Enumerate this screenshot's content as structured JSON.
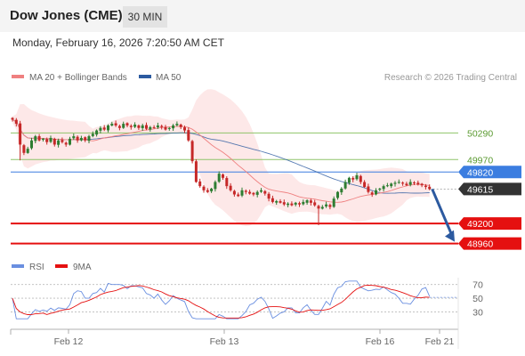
{
  "header": {
    "title": "Dow Jones (CME)",
    "timeframe": "30 MIN"
  },
  "timestamp": "Monday, February 16, 2026 7:20:50 AM CET",
  "legend": {
    "ma20_label": "MA 20 + Bollinger Bands",
    "ma50_label": "MA 50",
    "credit": "Research © 2026 Trading Central",
    "rsi_label": "RSI",
    "rsi_ma_label": "9MA"
  },
  "colors": {
    "up": "#2e7d32",
    "down": "#c62828",
    "ma20": "#ef8080",
    "ma50": "#2c5aa0",
    "bollinger_fill": "#fde6e6",
    "resistance_green": "#8fc46a",
    "pivot_blue": "#3b7de0",
    "support_red": "#e51010",
    "current_dark": "#333333",
    "forecast_arrow": "#2c5aa0",
    "rsi": "#6a8fe0",
    "rsi_ma": "#e51010"
  },
  "chart_data": [
    {
      "type": "candlestick",
      "title": "Dow Jones (CME)",
      "timeframe": "30 MIN",
      "ylim": [
        48870,
        50690
      ],
      "x_ticks": [
        "Feb 12",
        "Feb 13",
        "Feb 16",
        "Feb 21"
      ],
      "levels": [
        {
          "value": 50290,
          "label": "50290",
          "kind": "resistance"
        },
        {
          "value": 49970,
          "label": "49970",
          "kind": "resistance"
        },
        {
          "value": 49820,
          "label": "49820",
          "kind": "pivot"
        },
        {
          "value": 49615,
          "label": "49615",
          "kind": "current"
        },
        {
          "value": 49200,
          "label": "49200",
          "kind": "support"
        },
        {
          "value": 48960,
          "label": "48960",
          "kind": "support"
        }
      ],
      "forecast": {
        "from": 49615,
        "to": 48960
      },
      "series": [
        {
          "name": "MA 20 + Bollinger Bands",
          "kind": "line"
        },
        {
          "name": "MA 50",
          "kind": "line"
        }
      ],
      "close_sequence": [
        50450,
        50400,
        50150,
        50050,
        50100,
        50200,
        50250,
        50200,
        50220,
        50180,
        50230,
        50150,
        50200,
        50180,
        50150,
        50220,
        50250,
        50200,
        50230,
        50200,
        50250,
        50280,
        50320,
        50350,
        50330,
        50380,
        50400,
        50380,
        50350,
        50400,
        50380,
        50360,
        50390,
        50350,
        50380,
        50340,
        50360,
        50350,
        50380,
        50360,
        50330,
        50350,
        50380,
        50400,
        50360,
        50320,
        50200,
        49950,
        49700,
        49650,
        49600,
        49580,
        49620,
        49700,
        49800,
        49750,
        49650,
        49600,
        49550,
        49530,
        49600,
        49580,
        49560,
        49550,
        49580,
        49600,
        49560,
        49500,
        49460,
        49470,
        49450,
        49430,
        49440,
        49420,
        49450,
        49430,
        49460,
        49480,
        49450,
        49420,
        49380,
        49400,
        49430,
        49400,
        49500,
        49580,
        49620,
        49700,
        49750,
        49730,
        49780,
        49700,
        49640,
        49580,
        49550,
        49600,
        49620,
        49650,
        49660,
        49680,
        49690,
        49700,
        49680,
        49660,
        49700,
        49690,
        49670,
        49660,
        49640,
        49615
      ]
    },
    {
      "type": "line",
      "title": "RSI",
      "ylim": [
        15,
        80
      ],
      "y_ticks": [
        70,
        50,
        30
      ],
      "series": [
        {
          "name": "RSI",
          "kind": "rsi"
        },
        {
          "name": "9MA",
          "kind": "rsi_ma"
        }
      ]
    }
  ]
}
